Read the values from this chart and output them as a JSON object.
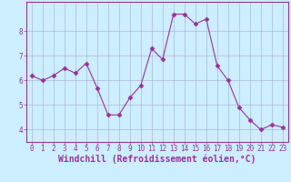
{
  "x": [
    0,
    1,
    2,
    3,
    4,
    5,
    6,
    7,
    8,
    9,
    10,
    11,
    12,
    13,
    14,
    15,
    16,
    17,
    18,
    19,
    20,
    21,
    22,
    23
  ],
  "y": [
    6.2,
    6.0,
    6.2,
    6.5,
    6.3,
    6.7,
    5.7,
    4.6,
    4.6,
    5.3,
    5.8,
    7.3,
    6.85,
    8.7,
    8.7,
    8.3,
    8.5,
    6.6,
    6.0,
    4.9,
    4.4,
    4.0,
    4.2,
    4.1
  ],
  "xlim": [
    -0.5,
    23.5
  ],
  "ylim": [
    3.5,
    9.2
  ],
  "yticks": [
    4,
    5,
    6,
    7,
    8
  ],
  "xticks": [
    0,
    1,
    2,
    3,
    4,
    5,
    6,
    7,
    8,
    9,
    10,
    11,
    12,
    13,
    14,
    15,
    16,
    17,
    18,
    19,
    20,
    21,
    22,
    23
  ],
  "line_color": "#993399",
  "marker": "D",
  "marker_size": 2.5,
  "bg_color": "#cceeff",
  "grid_color": "#aaaacc",
  "xlabel": "Windchill (Refroidissement éolien,°C)",
  "tick_color": "#993399",
  "label_color": "#993399",
  "spine_color": "#993399",
  "font_size": 5.5,
  "xlabel_font_size": 7.0
}
